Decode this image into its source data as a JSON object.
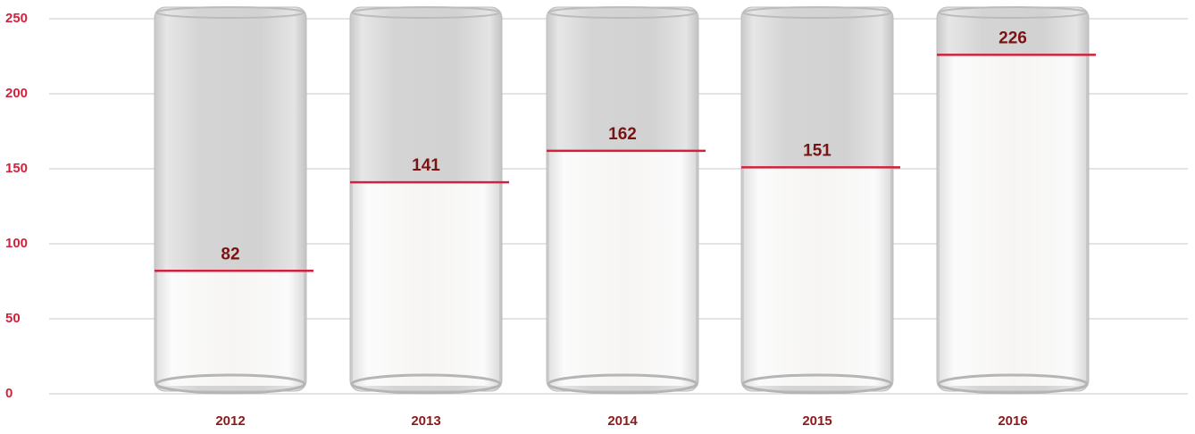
{
  "chart_data": {
    "type": "bar",
    "categories": [
      "2012",
      "2013",
      "2014",
      "2015",
      "2016"
    ],
    "values": [
      82,
      141,
      162,
      151,
      226
    ],
    "color": "#d0223c",
    "ylim": [
      0,
      250
    ],
    "yticks": [
      0,
      50,
      100,
      150,
      200,
      250
    ],
    "grid": true
  }
}
